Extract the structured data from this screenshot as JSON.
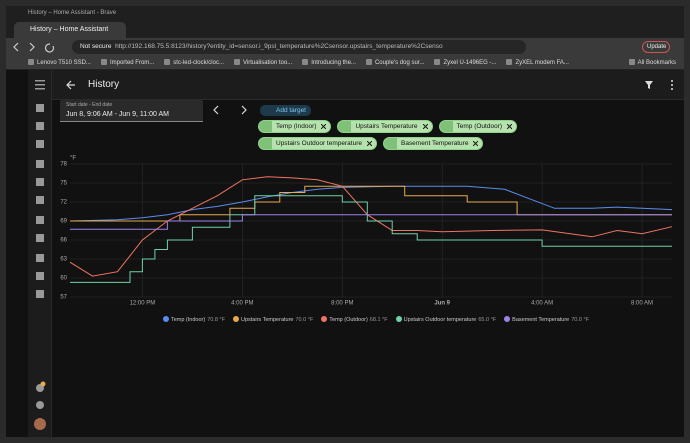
{
  "browser": {
    "window_title": "History – Home Assistant - Brave",
    "tab_title": "History – Home Assistant",
    "security": "Not secure",
    "url": "http://192.168.75.5:8123/history?entity_id=sensor.i_9psl_temperature%2Csensor.upstairs_temperature%2Csenso",
    "update_button": "Update",
    "bookmarks": [
      "Lenovo T510 SSD...",
      "Imported From...",
      "stc-led-clock/cloc...",
      "Virtualisation too...",
      "Introducing the...",
      "Couple's dog sur...",
      "Zyxel U-1496EG -...",
      "ZyXEL modem FA..."
    ],
    "all_bookmarks": "All Bookmarks"
  },
  "header": {
    "title": "History"
  },
  "date_picker": {
    "label": "Start date - End date",
    "value": "Jun 8, 9:06 AM - Jun 9, 11:00 AM"
  },
  "add_target": "Add target",
  "targets": [
    "Temp (Indoor)",
    "Upstairs Temperature",
    "Temp (Outdoor)",
    "Upstairs Outdoor temperature",
    "Basement Temperature"
  ],
  "chart_data": {
    "type": "line",
    "y_label": "°F",
    "ylim": [
      57,
      78
    ],
    "yticks": [
      57,
      60,
      63,
      66,
      69,
      72,
      75,
      78
    ],
    "xlim": [
      9.1,
      33.2
    ],
    "xticks": [
      {
        "value": 12,
        "label": "12:00 PM"
      },
      {
        "value": 16,
        "label": "4:00 PM"
      },
      {
        "value": 20,
        "label": "8:00 PM"
      },
      {
        "value": 24,
        "label": "Jun 9"
      },
      {
        "value": 28,
        "label": "4:00 AM"
      },
      {
        "value": 32,
        "label": "8:00 AM"
      }
    ],
    "grid": true,
    "series": [
      {
        "name": "Temp (Indoor)",
        "legend_value": "70.8 °F",
        "color": "#5b8def",
        "x": [
          9.1,
          11,
          12,
          13,
          14,
          15,
          16,
          17,
          18,
          19,
          20,
          22,
          24,
          25,
          26.5,
          27.5,
          28.5,
          30,
          31,
          32,
          33.2
        ],
        "values": [
          69,
          69.2,
          69.5,
          70,
          70.8,
          71.3,
          72,
          72.8,
          73.5,
          74,
          74.3,
          74.5,
          74.5,
          74.5,
          74,
          72.5,
          71,
          71,
          71.2,
          71,
          70.8
        ]
      },
      {
        "name": "Upstairs Temperature",
        "legend_value": "70.0 °F",
        "color": "#e8a94f",
        "x": [
          9.1,
          13.5,
          13.5,
          15.5,
          15.5,
          16.5,
          16.5,
          17.5,
          17.5,
          18.5,
          18.5,
          22.5,
          22.5,
          25,
          25,
          27,
          27,
          33.2
        ],
        "values": [
          69,
          69,
          70,
          70,
          71,
          71,
          72,
          72,
          73.5,
          73.5,
          74.5,
          74.5,
          73,
          73,
          72,
          72,
          70,
          70
        ]
      },
      {
        "name": "Temp (Outdoor)",
        "legend_value": "68.1 °F",
        "color": "#f07464",
        "x": [
          9.1,
          10,
          11,
          11.5,
          12,
          13,
          14,
          15,
          16,
          17,
          18,
          19,
          20,
          21,
          22,
          23,
          24,
          26,
          28,
          30,
          31,
          32,
          33.2
        ],
        "values": [
          62.5,
          60.3,
          61,
          63.5,
          66,
          69,
          71,
          73,
          75.5,
          76,
          75.8,
          75.5,
          74.5,
          70,
          67.5,
          67.5,
          67.3,
          67.5,
          67.6,
          66.5,
          67.5,
          67,
          68.1
        ]
      },
      {
        "name": "Upstairs Outdoor temperature",
        "legend_value": "65.0 °F",
        "color": "#6fd1a6",
        "x": [
          9.1,
          11.5,
          11.5,
          12,
          12,
          12.5,
          12.5,
          13,
          13,
          14,
          14,
          15.5,
          15.5,
          16.5,
          16.5,
          20,
          20,
          21,
          21,
          22,
          22,
          23,
          23,
          28,
          28,
          33.2
        ],
        "values": [
          59.3,
          59.3,
          61,
          61,
          63,
          63,
          64.5,
          64.5,
          66,
          66,
          68,
          68,
          70,
          70,
          73,
          73,
          72,
          72,
          69,
          69,
          67,
          67,
          66,
          66,
          65,
          65
        ]
      },
      {
        "name": "Basement Temperature",
        "legend_value": "70.0 °F",
        "color": "#9d82ea",
        "x": [
          9.1,
          13,
          13,
          16,
          16,
          33.2
        ],
        "values": [
          67.7,
          67.7,
          69,
          69,
          70,
          70
        ]
      }
    ]
  }
}
